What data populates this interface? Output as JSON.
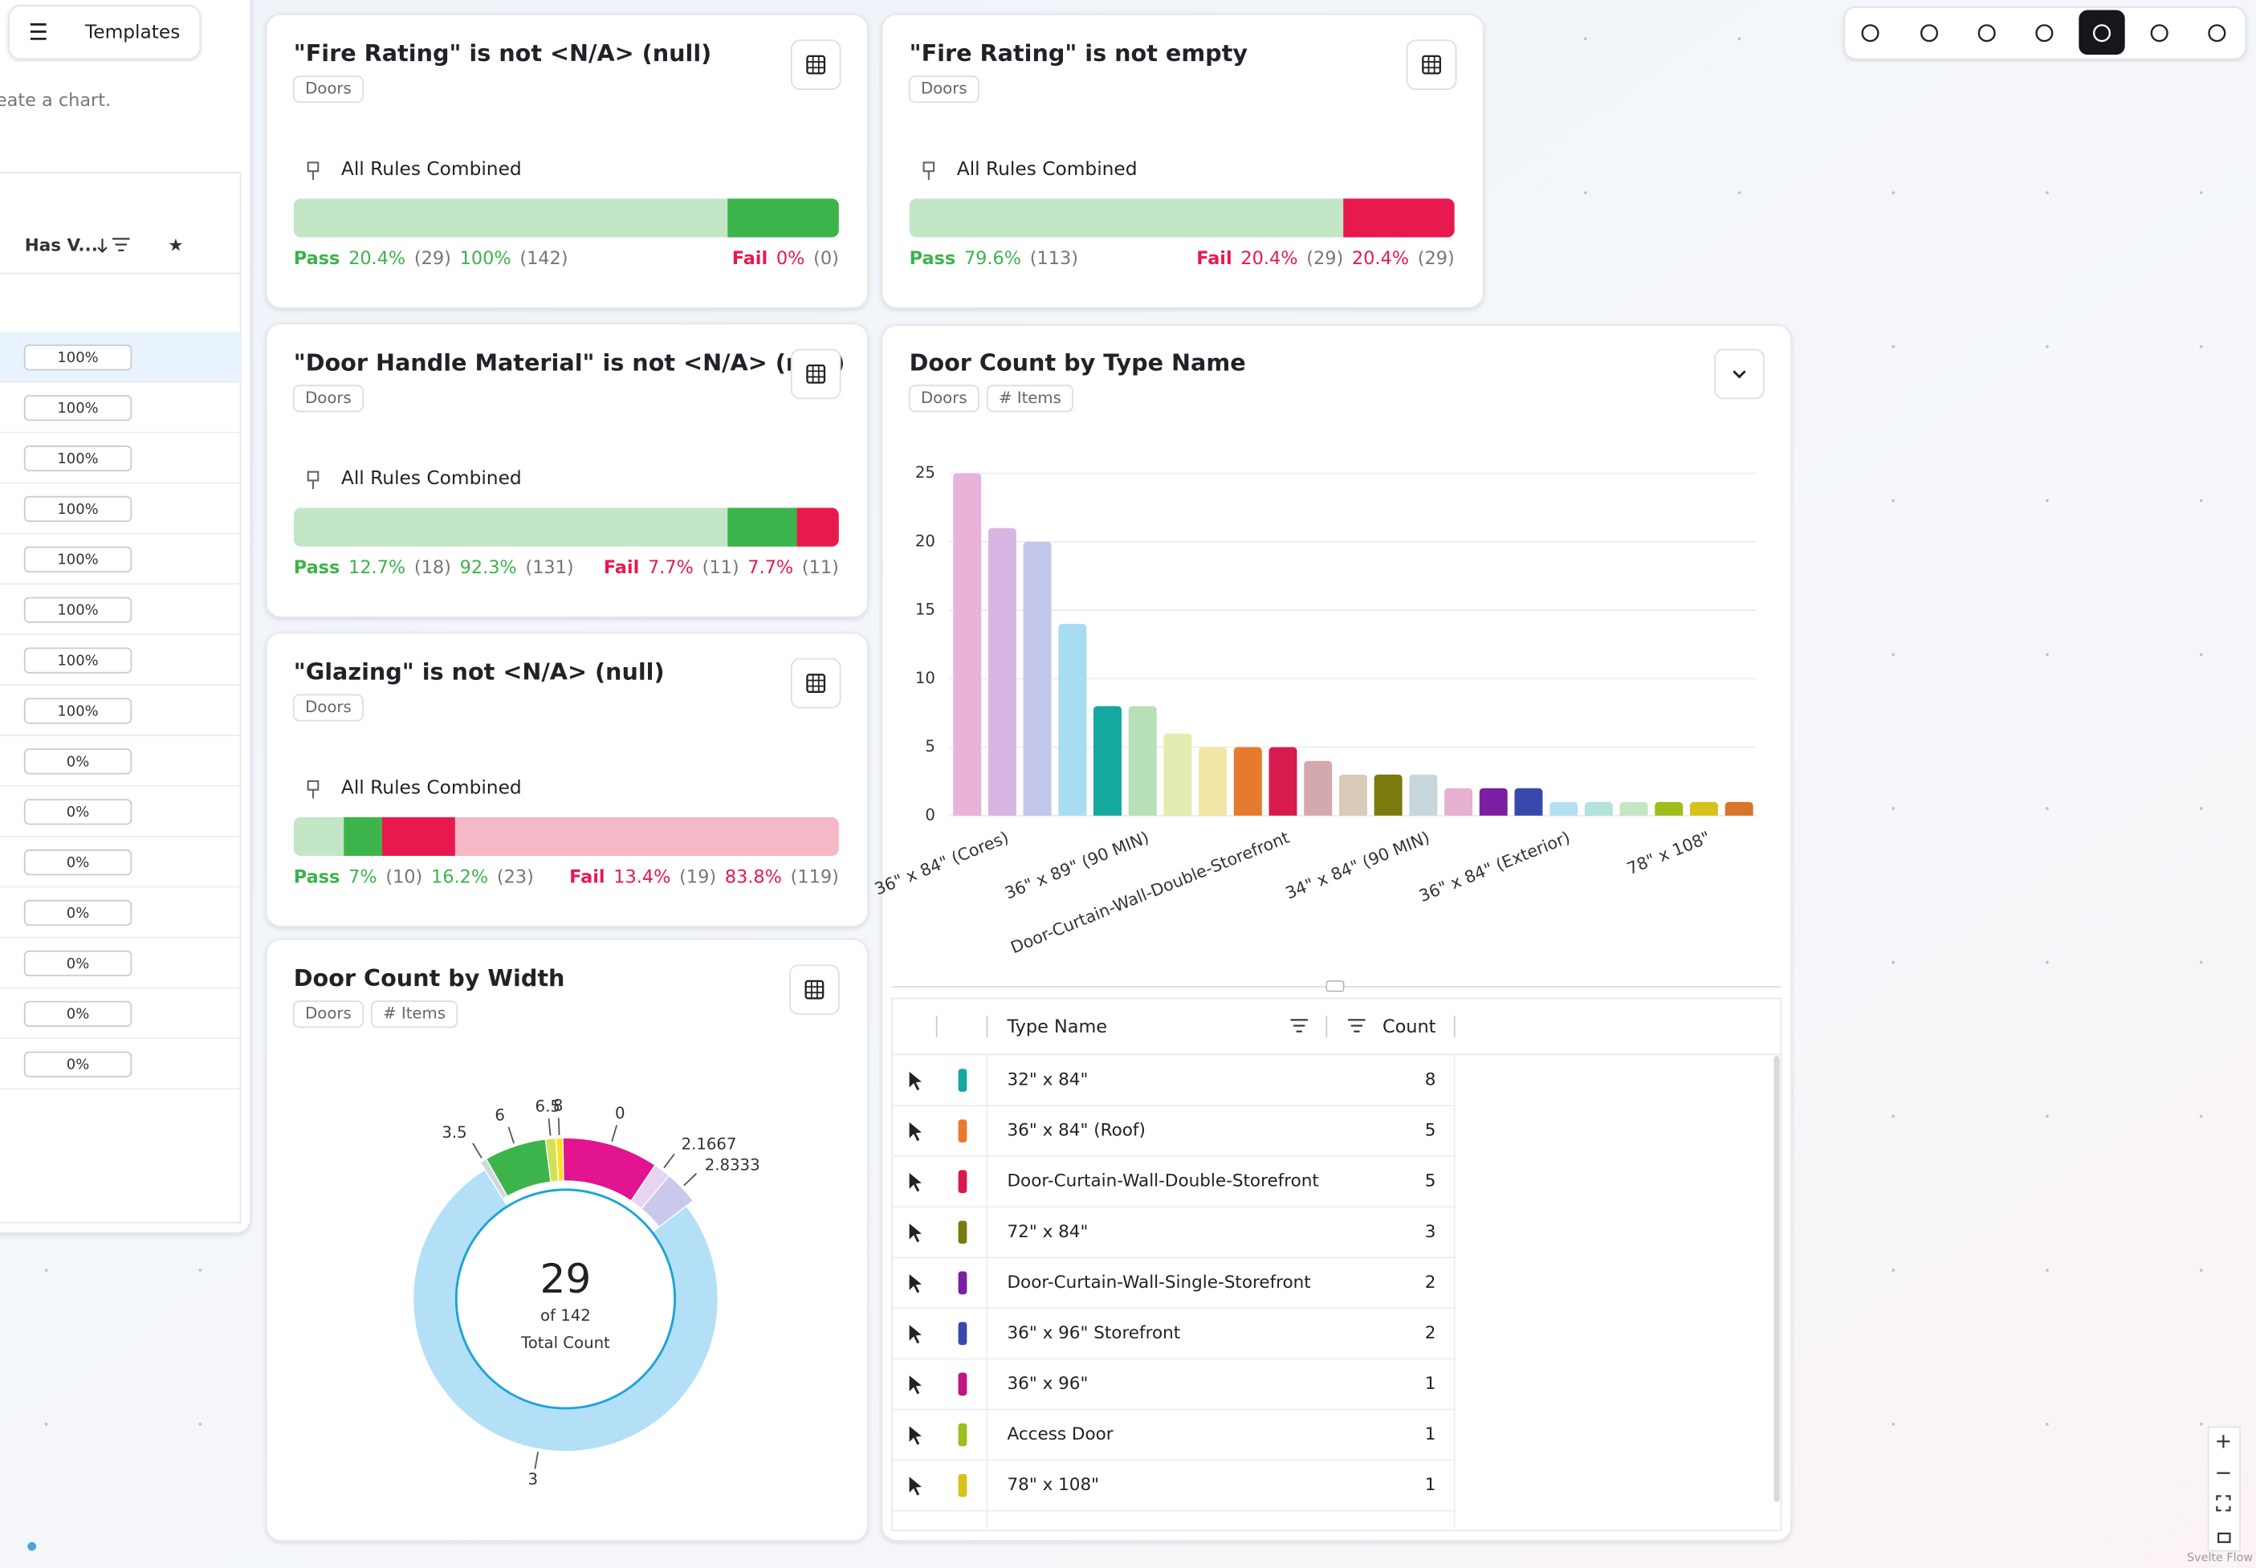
{
  "sidebar": {
    "button": "Templates",
    "hint": "eate a chart.",
    "column": "Has V...",
    "percents": [
      "100%",
      "100%",
      "100%",
      "100%",
      "100%",
      "100%",
      "100%",
      "100%",
      "0%",
      "0%",
      "0%",
      "0%",
      "0%",
      "0%",
      "0%"
    ]
  },
  "rule_cards": [
    {
      "title": "\"Fire Rating\" is not <N/A> (null)",
      "tag": "Doors",
      "subtitle": "All Rules Combined",
      "pass": {
        "label": "Pass",
        "values": [
          20.4,
          29,
          100,
          142
        ],
        "value_labels": [
          "20.4%",
          "(29)",
          "100%",
          "(142)"
        ]
      },
      "fail": {
        "label": "Fail",
        "values": [
          0,
          0
        ],
        "value_labels": [
          "0%",
          "(0)"
        ]
      }
    },
    {
      "title": "\"Fire Rating\" is not empty",
      "tag": "Doors",
      "subtitle": "All Rules Combined",
      "pass": {
        "label": "Pass",
        "values": [
          79.6,
          113
        ],
        "value_labels": [
          "79.6%",
          "(113)"
        ]
      },
      "fail": {
        "label": "Fail",
        "values": [
          20.4,
          29,
          20.4,
          29
        ],
        "value_labels": [
          "20.4%",
          "(29)",
          "20.4%",
          "(29)"
        ]
      }
    },
    {
      "title": "\"Door Handle Material\" is not <N/A> (null)",
      "tag": "Doors",
      "subtitle": "All Rules Combined",
      "pass": {
        "label": "Pass",
        "values": [
          12.7,
          18,
          92.3,
          131
        ],
        "value_labels": [
          "12.7%",
          "(18)",
          "92.3%",
          "(131)"
        ]
      },
      "fail": {
        "label": "Fail",
        "values": [
          7.7,
          11,
          7.7,
          11
        ],
        "value_labels": [
          "7.7%",
          "(11)",
          "7.7%",
          "(11)"
        ]
      }
    },
    {
      "title": "\"Glazing\" is not <N/A> (null)",
      "tag": "Doors",
      "subtitle": "All Rules Combined",
      "pass": {
        "label": "Pass",
        "values": [
          7,
          10,
          16.2,
          23
        ],
        "value_labels": [
          "7%",
          "(10)",
          "16.2%",
          "(23)"
        ]
      },
      "fail": {
        "label": "Fail",
        "values": [
          13.4,
          19,
          83.8,
          119
        ],
        "value_labels": [
          "13.4%",
          "(19)",
          "83.8%",
          "(119)"
        ]
      }
    }
  ],
  "chart_data": [
    {
      "type": "pie",
      "title": "Door Count by Width",
      "tags": [
        "Doors",
        "# Items"
      ],
      "categories": [
        "3.5",
        "6",
        "6.5",
        "8",
        "0",
        "2.1667",
        "2.8333",
        "3"
      ],
      "values": [
        0.2,
        1.8,
        0.3,
        0.2,
        2.8,
        0.5,
        1,
        22.2
      ],
      "colors": [
        "#cfd8dc",
        "#3cb44b",
        "#d4e157",
        "#ffe119",
        "#e2148f",
        "#e6d4f0",
        "#cbc8ee",
        "#b3e0f7"
      ],
      "total": 29,
      "of_label": "of 142",
      "caption": "Total Count"
    },
    {
      "type": "bar",
      "title": "Door Count by Type Name",
      "tags": [
        "Doors",
        "# Items"
      ],
      "categories": [
        null,
        "36\" x 84\" (Cores)",
        null,
        null,
        null,
        "36\" x 89\" (90 MIN)",
        null,
        null,
        null,
        "Door-Curtain-Wall-Double-Storefront",
        null,
        null,
        null,
        "34\" x 84\" (90 MIN)",
        null,
        null,
        null,
        "36\" x 84\" (Exterior)",
        null,
        null,
        null,
        "78\" x 108\"",
        null
      ],
      "values": [
        25,
        21,
        20,
        14,
        8,
        8,
        6,
        5,
        5,
        5,
        4,
        3,
        3,
        3,
        2,
        2,
        2,
        1,
        1,
        1,
        1,
        1,
        1
      ],
      "colors": [
        "#e9b3d9",
        "#d7b6e3",
        "#c3c8ea",
        "#a8dcf2",
        "#14a89f",
        "#b7dfb8",
        "#e3ecb0",
        "#f1e6a6",
        "#e67a2e",
        "#d81b4f",
        "#d4a9ad",
        "#d8cbb8",
        "#7a7a0f",
        "#c7d6dc",
        "#e7b1d1",
        "#7b1fa2",
        "#3949ab",
        "#b3e0f0",
        "#b2e3dc",
        "#c5e5c5",
        "#9cbf1e",
        "#d6c21a",
        "#d9742c"
      ],
      "ylim": [
        0,
        25
      ],
      "yticks": [
        0,
        5,
        10,
        15,
        20,
        25
      ],
      "grid": true
    }
  ],
  "table": {
    "headers": [
      "Type Name",
      "Count"
    ],
    "rows": [
      {
        "name": "32\" x 84\"",
        "count": 8,
        "color": "#14a89f"
      },
      {
        "name": "36\" x 84\" (Roof)",
        "count": 5,
        "color": "#e67a2e"
      },
      {
        "name": "Door-Curtain-Wall-Double-Storefront",
        "count": 5,
        "color": "#d81b4f"
      },
      {
        "name": "72\" x 84\"",
        "count": 3,
        "color": "#7a7a0f"
      },
      {
        "name": "Door-Curtain-Wall-Single-Storefront",
        "count": 2,
        "color": "#7b1fa2"
      },
      {
        "name": "36\" x 96\" Storefront",
        "count": 2,
        "color": "#3949ab"
      },
      {
        "name": "36\" x 96\"",
        "count": 1,
        "color": "#c2127f"
      },
      {
        "name": "Access Door",
        "count": 1,
        "color": "#9cbf1e"
      },
      {
        "name": "78\" x 108\"",
        "count": 1,
        "color": "#d6c21a"
      }
    ]
  },
  "attribution": "Svelte Flow"
}
